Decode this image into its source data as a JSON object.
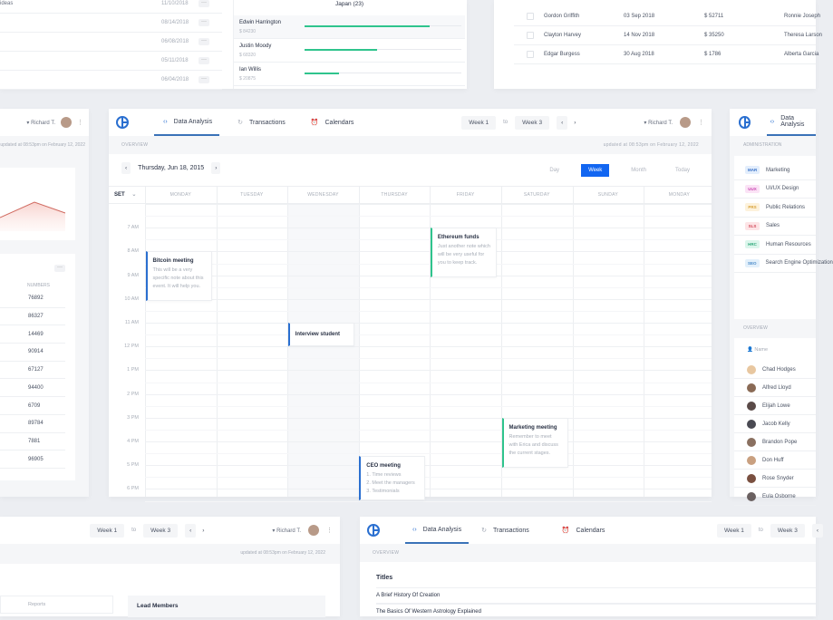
{
  "colors": {
    "accent": "#2a6fd0",
    "green": "#2fc48d",
    "background": "#eceef2"
  },
  "top_left": {
    "rows": [
      {
        "label": "ideas",
        "date": "11/10/2018"
      },
      {
        "label": "",
        "date": "08/14/2018"
      },
      {
        "label": "",
        "date": "06/08/2018"
      },
      {
        "label": "",
        "date": "05/11/2018"
      },
      {
        "label": "",
        "date": "06/04/2018"
      }
    ],
    "more": "···",
    "country_title": "Japan (23)",
    "members": [
      {
        "name": "Edwin Harrington",
        "amount": "$ 84230",
        "progress": 0.8
      },
      {
        "name": "Justin Moody",
        "amount": "$ 68320",
        "progress": 0.46
      },
      {
        "name": "Ian Willis",
        "amount": "$ 20875",
        "progress": 0.22
      }
    ]
  },
  "top_right": {
    "rows": [
      {
        "name": "Gordon Griffith",
        "date": "03 Sep 2018",
        "amount": "$ 52711",
        "person": "Ronnie Joseph"
      },
      {
        "name": "Clayton Harvey",
        "date": "14 Nov 2018",
        "amount": "$ 35250",
        "person": "Theresa Larson"
      },
      {
        "name": "Edgar Burgess",
        "date": "30 Aug 2018",
        "amount": "$ 1786",
        "person": "Alberta Garcia"
      }
    ]
  },
  "left_panel": {
    "user": "Richard T.",
    "updated": "updated at 08:53pm on February 12, 2022",
    "more": "···",
    "column": "NUMBERS",
    "numbers": [
      "76892",
      "86327",
      "14469",
      "90914",
      "67127",
      "94400",
      "6709",
      "89784",
      "7881",
      "96905"
    ]
  },
  "main": {
    "tabs": [
      {
        "label": "Data Analysis",
        "icon": "code-icon"
      },
      {
        "label": "Transactions",
        "icon": "refresh-icon"
      },
      {
        "label": "Calendars",
        "icon": "alarm-icon"
      }
    ],
    "week_from": "Week 1",
    "to": "to",
    "week_to": "Week 3",
    "user": "Richard T.",
    "overview": "OVERVIEW",
    "updated": "updated at 08:53pm on February 12, 2022",
    "date": "Thursday, Jun 18, 2015",
    "views": [
      "Day",
      "Week",
      "Month",
      "Today"
    ],
    "active_view": "Week",
    "set_label": "SET",
    "days": [
      "MONDAY",
      "TUESDAY",
      "WEDNESDAY",
      "THURSDAY",
      "FRIDAY",
      "SATURDAY",
      "SUNDAY",
      "MONDAY"
    ],
    "hours": [
      "",
      "7 AM",
      "8 AM",
      "9 AM",
      "10 AM",
      "11 AM",
      "12 PM",
      "1 PM",
      "2 PM",
      "3 PM",
      "4 PM",
      "5 PM",
      "6 PM"
    ],
    "events": [
      {
        "title": "Bitcoin meeting",
        "desc": "This will be a very specific note about this event. It will help you.",
        "day": 0,
        "start": 8,
        "end": 10.1,
        "color": "#2a6fd0"
      },
      {
        "title": "Interview student",
        "desc": "",
        "day": 2,
        "start": 11,
        "end": 12,
        "color": "#2a6fd0"
      },
      {
        "title": "Ethereum funds",
        "desc": "Just another note which will be very useful for you to keep track.",
        "day": 4,
        "start": 7,
        "end": 9.1,
        "color": "#2fc48d"
      },
      {
        "title": "Marketing meeting",
        "desc": "Remember to meet with Erica and discuss the current stages.",
        "day": 5,
        "start": 15,
        "end": 17.1,
        "color": "#2fc48d"
      },
      {
        "title": "CEO meeting",
        "desc": "1. Time reviews\n2. Meet the managers\n3. Testimonials",
        "day": 3,
        "start": 16.6,
        "end": 18.5,
        "color": "#2a6fd0"
      }
    ]
  },
  "right_panel": {
    "admin_title": "ADMINISTRATION",
    "departments": [
      {
        "code": "MAR",
        "label": "Marketing",
        "bg": "#e3eefc",
        "fg": "#3a72c8"
      },
      {
        "code": "UUX",
        "label": "UI/UX Design",
        "bg": "#fbe3f6",
        "fg": "#c845b0"
      },
      {
        "code": "PRS",
        "label": "Public Relations",
        "bg": "#fdf2dc",
        "fg": "#d9a33a"
      },
      {
        "code": "SLS",
        "label": "Sales",
        "bg": "#fde4e6",
        "fg": "#d2495a"
      },
      {
        "code": "HRC",
        "label": "Human Resources",
        "bg": "#dcf6ec",
        "fg": "#2fa87a"
      },
      {
        "code": "SEO",
        "label": "Search Engine Optimization",
        "bg": "#e3f0fb",
        "fg": "#4a8ac8"
      }
    ],
    "overview": "OVERVIEW",
    "name_col": "Name",
    "people": [
      "Chad Hodges",
      "Alfred Lloyd",
      "Elijah Lowe",
      "Jacob Kelly",
      "Brandon Pope",
      "Don Huff",
      "Rose Snyder",
      "Eula Osborne"
    ]
  },
  "bottom_left": {
    "week_from": "Week 1",
    "to": "to",
    "week_to": "Week 3",
    "user": "Richard T.",
    "updated": "updated at 08:53pm on February 12, 2022",
    "reports": "Reports",
    "lead": "Lead Members"
  },
  "bottom_right": {
    "tabs": [
      "Data Analysis",
      "Transactions",
      "Calendars"
    ],
    "week_from": "Week 1",
    "to": "to",
    "week_to": "Week 3",
    "overview": "OVERVIEW",
    "titles_header": "Titles",
    "titles": [
      "A Brief History Of Creation",
      "The Basics Of Western Astrology Explained"
    ]
  }
}
